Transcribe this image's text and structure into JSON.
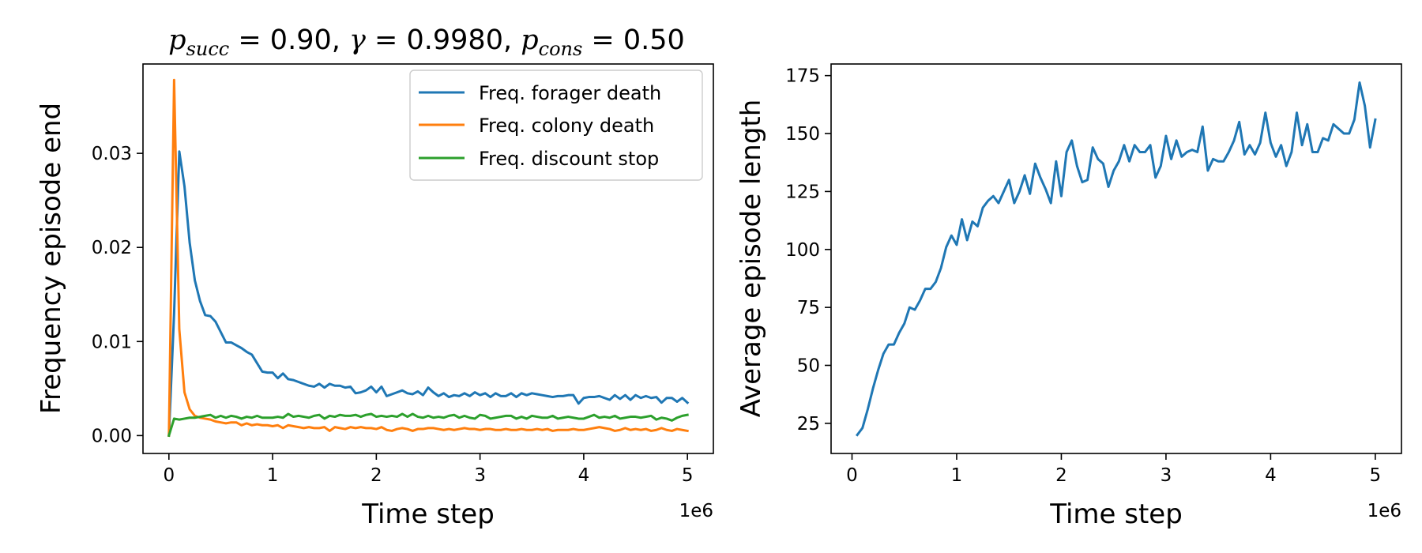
{
  "chart_data": [
    {
      "type": "line",
      "title": "p_succ = 0.90, γ = 0.9980, p_cons = 0.50",
      "title_parts": {
        "p_succ_symbol": "p",
        "p_succ_sub": "succ",
        "p_succ_value": " = 0.90, ",
        "gamma_symbol": "γ",
        "gamma_value": " = 0.9980, ",
        "p_cons_symbol": "p",
        "p_cons_sub": "cons",
        "p_cons_value": " = 0.50"
      },
      "xlabel": "Time step",
      "ylabel": "Frequency episode end",
      "x_offset_label": "1e6",
      "xlim": [
        -0.25,
        5.25
      ],
      "ylim": [
        -0.0019,
        0.0395
      ],
      "xticks": [
        0,
        1,
        2,
        3,
        4,
        5
      ],
      "xtick_labels": [
        "0",
        "1",
        "2",
        "3",
        "4",
        "5"
      ],
      "yticks": [
        0,
        0.01,
        0.02,
        0.03
      ],
      "ytick_labels": [
        "0.00",
        "0.01",
        "0.02",
        "0.03"
      ],
      "grid": false,
      "legend_position": "top-right",
      "x": [
        0,
        0.05,
        0.1,
        0.15,
        0.2,
        0.25,
        0.3,
        0.35,
        0.4,
        0.45,
        0.5,
        0.55,
        0.6,
        0.65,
        0.7,
        0.75,
        0.8,
        0.85,
        0.9,
        0.95,
        1.0,
        1.05,
        1.1,
        1.15,
        1.2,
        1.25,
        1.3,
        1.35,
        1.4,
        1.45,
        1.5,
        1.55,
        1.6,
        1.65,
        1.7,
        1.75,
        1.8,
        1.85,
        1.9,
        1.95,
        2.0,
        2.05,
        2.1,
        2.15,
        2.2,
        2.25,
        2.3,
        2.35,
        2.4,
        2.45,
        2.5,
        2.55,
        2.6,
        2.65,
        2.7,
        2.75,
        2.8,
        2.85,
        2.9,
        2.95,
        3.0,
        3.05,
        3.1,
        3.15,
        3.2,
        3.25,
        3.3,
        3.35,
        3.4,
        3.45,
        3.5,
        3.55,
        3.6,
        3.65,
        3.7,
        3.75,
        3.8,
        3.85,
        3.9,
        3.95,
        4.0,
        4.05,
        4.1,
        4.15,
        4.2,
        4.25,
        4.3,
        4.35,
        4.4,
        4.45,
        4.5,
        4.55,
        4.6,
        4.65,
        4.7,
        4.75,
        4.8,
        4.85,
        4.9,
        4.95,
        5.0
      ],
      "series": [
        {
          "name": "Freq. forager death",
          "color": "#1f77b4",
          "values": [
            0.0,
            0.013,
            0.0302,
            0.0265,
            0.0205,
            0.0165,
            0.0143,
            0.0128,
            0.0127,
            0.0121,
            0.011,
            0.0099,
            0.0099,
            0.0096,
            0.0093,
            0.0089,
            0.0086,
            0.0077,
            0.0068,
            0.0067,
            0.0067,
            0.0061,
            0.0066,
            0.006,
            0.0059,
            0.0057,
            0.0055,
            0.0053,
            0.0052,
            0.0055,
            0.0051,
            0.0055,
            0.0053,
            0.0053,
            0.0051,
            0.0052,
            0.0045,
            0.0046,
            0.0048,
            0.0052,
            0.0046,
            0.0052,
            0.0042,
            0.0044,
            0.0046,
            0.0048,
            0.0045,
            0.0044,
            0.0047,
            0.0043,
            0.0051,
            0.0046,
            0.0042,
            0.0045,
            0.0041,
            0.0043,
            0.0042,
            0.0045,
            0.0042,
            0.0046,
            0.0043,
            0.0045,
            0.0041,
            0.0045,
            0.0042,
            0.0042,
            0.0045,
            0.0041,
            0.0045,
            0.0043,
            0.0045,
            0.0044,
            0.0043,
            0.0042,
            0.0041,
            0.0042,
            0.0042,
            0.0043,
            0.0043,
            0.0034,
            0.004,
            0.0041,
            0.0041,
            0.0042,
            0.004,
            0.0038,
            0.0043,
            0.0039,
            0.0043,
            0.0038,
            0.0043,
            0.004,
            0.0042,
            0.004,
            0.0041,
            0.0035,
            0.004,
            0.004,
            0.0036,
            0.004,
            0.0035
          ]
        },
        {
          "name": "Freq. colony death",
          "color": "#ff7f0e",
          "values": [
            0.0,
            0.0378,
            0.0113,
            0.0046,
            0.0028,
            0.0021,
            0.0019,
            0.0018,
            0.0017,
            0.0015,
            0.0014,
            0.0013,
            0.0014,
            0.0014,
            0.0011,
            0.0013,
            0.0011,
            0.0012,
            0.0011,
            0.0011,
            0.001,
            0.0011,
            0.0008,
            0.0011,
            0.001,
            0.0009,
            0.0008,
            0.0009,
            0.0008,
            0.0008,
            0.0009,
            0.0005,
            0.0009,
            0.0008,
            0.0007,
            0.0009,
            0.0008,
            0.0009,
            0.0008,
            0.0008,
            0.0007,
            0.0009,
            0.0006,
            0.0005,
            0.0007,
            0.0008,
            0.0007,
            0.0005,
            0.0007,
            0.0007,
            0.0008,
            0.0008,
            0.0007,
            0.0006,
            0.0007,
            0.0006,
            0.0007,
            0.0008,
            0.0007,
            0.0007,
            0.0006,
            0.0007,
            0.0007,
            0.0006,
            0.0006,
            0.0007,
            0.0006,
            0.0006,
            0.0007,
            0.0006,
            0.0006,
            0.0007,
            0.0006,
            0.0007,
            0.0005,
            0.0006,
            0.0006,
            0.0006,
            0.0007,
            0.0006,
            0.0006,
            0.0007,
            0.0008,
            0.0009,
            0.0008,
            0.0007,
            0.0005,
            0.0006,
            0.0008,
            0.0006,
            0.0007,
            0.0006,
            0.0007,
            0.0005,
            0.0006,
            0.0008,
            0.0006,
            0.0005,
            0.0007,
            0.0006,
            0.0005
          ]
        },
        {
          "name": "Freq. discount stop",
          "color": "#2ca02c",
          "values": [
            0.0,
            0.0018,
            0.0017,
            0.0018,
            0.0019,
            0.0019,
            0.002,
            0.0021,
            0.0022,
            0.0019,
            0.0021,
            0.0019,
            0.0021,
            0.002,
            0.0018,
            0.002,
            0.0019,
            0.0021,
            0.0019,
            0.0019,
            0.0019,
            0.002,
            0.0019,
            0.0023,
            0.002,
            0.0021,
            0.002,
            0.0019,
            0.0021,
            0.0022,
            0.0018,
            0.0021,
            0.002,
            0.0022,
            0.0021,
            0.0021,
            0.0022,
            0.002,
            0.0022,
            0.0023,
            0.002,
            0.0021,
            0.002,
            0.0021,
            0.002,
            0.0023,
            0.002,
            0.0023,
            0.002,
            0.0019,
            0.0021,
            0.0019,
            0.002,
            0.0019,
            0.0021,
            0.0022,
            0.0019,
            0.0021,
            0.0019,
            0.0018,
            0.0022,
            0.0021,
            0.0018,
            0.0019,
            0.002,
            0.0021,
            0.0021,
            0.0018,
            0.002,
            0.0018,
            0.0021,
            0.002,
            0.0019,
            0.0019,
            0.0021,
            0.0018,
            0.0019,
            0.002,
            0.0019,
            0.0018,
            0.0018,
            0.002,
            0.0022,
            0.0019,
            0.002,
            0.0019,
            0.0021,
            0.0018,
            0.0019,
            0.002,
            0.002,
            0.0019,
            0.002,
            0.0021,
            0.0017,
            0.0019,
            0.0018,
            0.0016,
            0.0019,
            0.0021,
            0.0022
          ]
        }
      ]
    },
    {
      "type": "line",
      "title": "",
      "xlabel": "Time step",
      "ylabel": "Average episode length",
      "x_offset_label": "1e6",
      "xlim": [
        -0.2,
        5.25
      ],
      "ylim": [
        12,
        180
      ],
      "xticks": [
        0,
        1,
        2,
        3,
        4,
        5
      ],
      "xtick_labels": [
        "0",
        "1",
        "2",
        "3",
        "4",
        "5"
      ],
      "yticks": [
        25,
        50,
        75,
        100,
        125,
        150,
        175
      ],
      "ytick_labels": [
        "25",
        "50",
        "75",
        "100",
        "125",
        "150",
        "175"
      ],
      "grid": false,
      "x": [
        0.05,
        0.1,
        0.15,
        0.2,
        0.25,
        0.3,
        0.35,
        0.4,
        0.45,
        0.5,
        0.55,
        0.6,
        0.65,
        0.7,
        0.75,
        0.8,
        0.85,
        0.9,
        0.95,
        1.0,
        1.05,
        1.1,
        1.15,
        1.2,
        1.25,
        1.3,
        1.35,
        1.4,
        1.45,
        1.5,
        1.55,
        1.6,
        1.65,
        1.7,
        1.75,
        1.8,
        1.85,
        1.9,
        1.95,
        2.0,
        2.05,
        2.1,
        2.15,
        2.2,
        2.25,
        2.3,
        2.35,
        2.4,
        2.45,
        2.5,
        2.55,
        2.6,
        2.65,
        2.7,
        2.75,
        2.8,
        2.85,
        2.9,
        2.95,
        3.0,
        3.05,
        3.1,
        3.15,
        3.2,
        3.25,
        3.3,
        3.35,
        3.4,
        3.45,
        3.5,
        3.55,
        3.6,
        3.65,
        3.7,
        3.75,
        3.8,
        3.85,
        3.9,
        3.95,
        4.0,
        4.05,
        4.1,
        4.15,
        4.2,
        4.25,
        4.3,
        4.35,
        4.4,
        4.45,
        4.5,
        4.55,
        4.6,
        4.65,
        4.7,
        4.75,
        4.8,
        4.85,
        4.9,
        4.95,
        5.0
      ],
      "series": [
        {
          "color": "#1f77b4",
          "values": [
            20,
            23,
            31,
            40,
            48,
            55,
            59,
            59,
            64,
            68,
            75,
            74,
            78,
            83,
            83,
            86,
            92,
            101,
            106,
            102,
            113,
            104,
            112,
            110,
            118,
            121,
            123,
            120,
            125,
            130,
            120,
            125,
            132,
            124,
            137,
            131,
            126,
            120,
            138,
            123,
            142,
            147,
            136,
            129,
            130,
            144,
            139,
            137,
            127,
            134,
            138,
            145,
            138,
            145,
            142,
            142,
            145,
            131,
            136,
            149,
            139,
            147,
            140,
            142,
            143,
            142,
            153,
            134,
            139,
            138,
            138,
            142,
            147,
            155,
            141,
            145,
            141,
            146,
            159,
            146,
            140,
            145,
            136,
            142,
            159,
            145,
            154,
            142,
            142,
            148,
            147,
            154,
            152,
            150,
            150,
            156,
            172,
            162,
            144,
            156
          ]
        }
      ]
    }
  ]
}
